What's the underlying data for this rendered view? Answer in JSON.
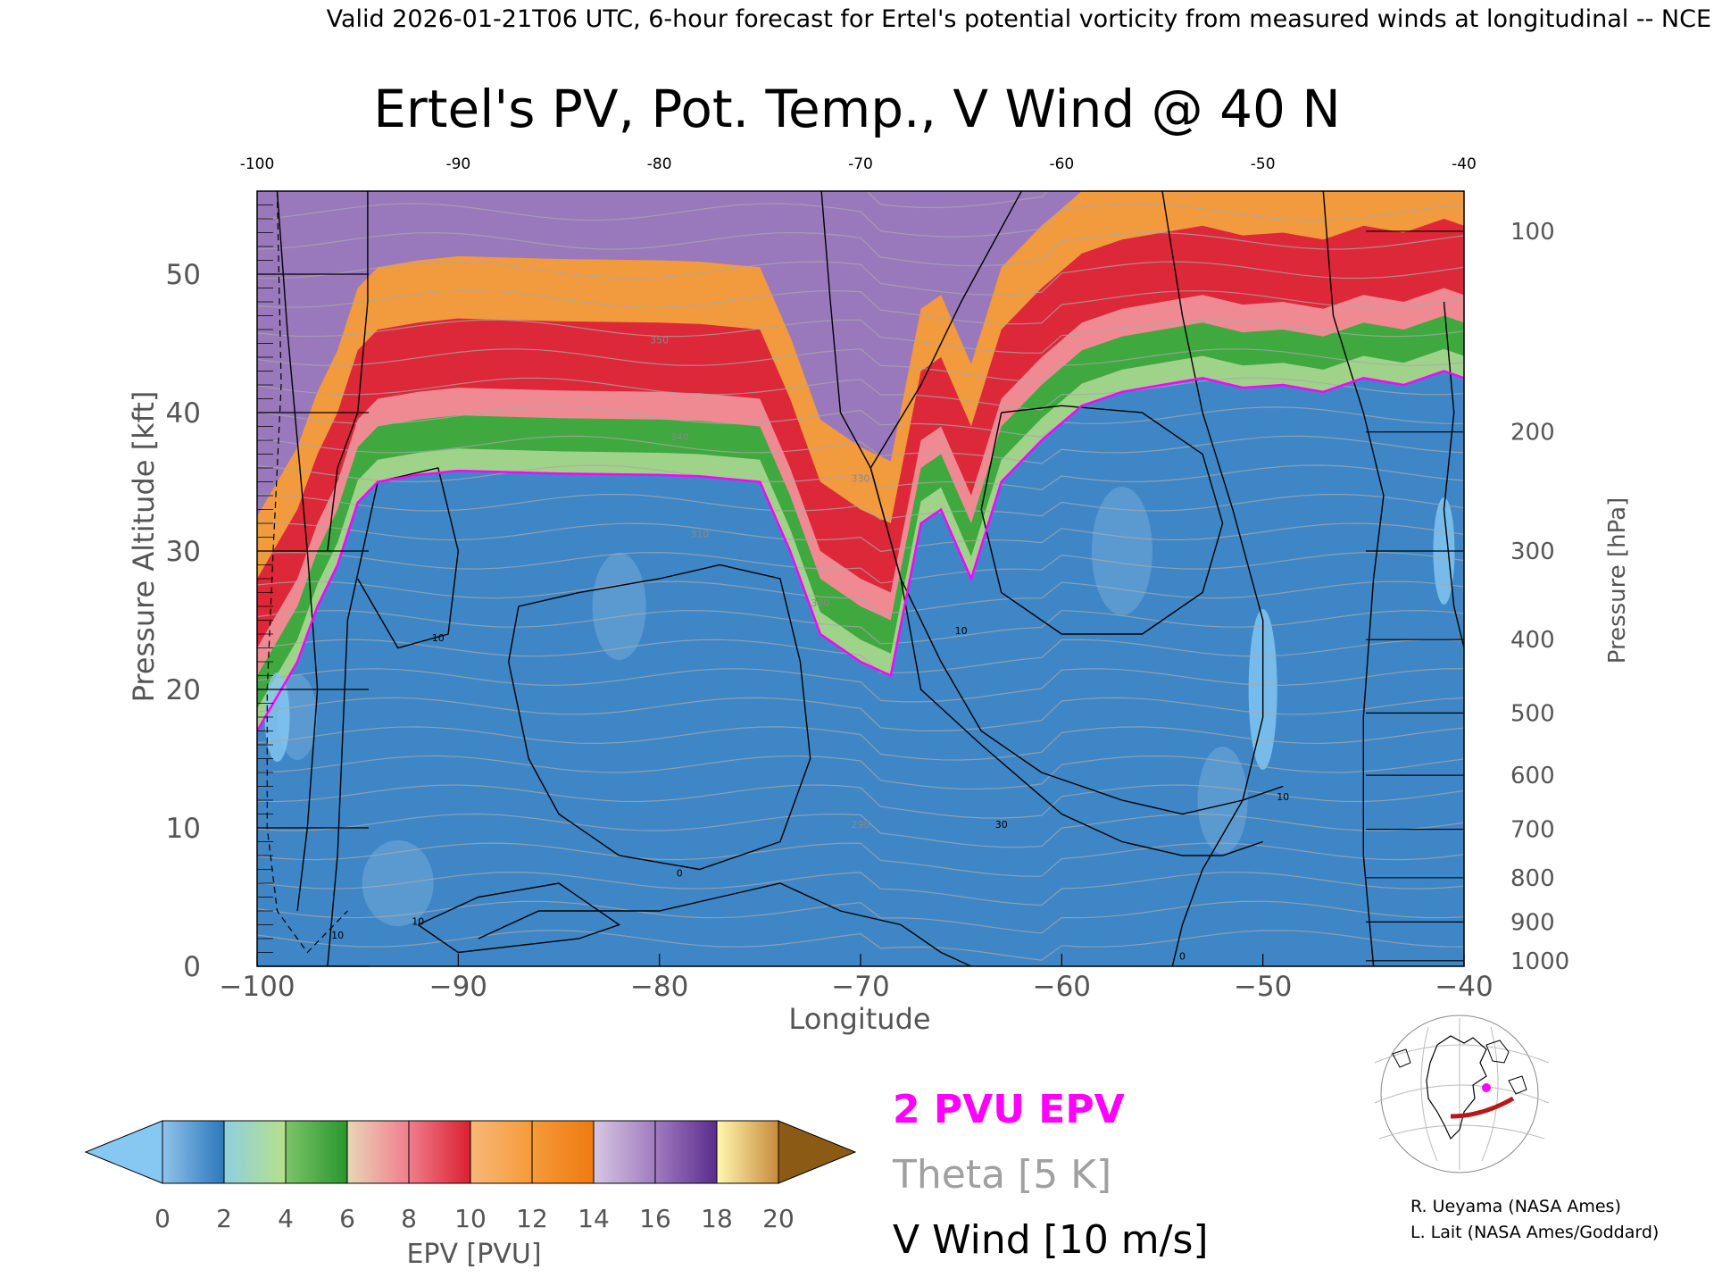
{
  "header": {
    "valid_line": "Valid 2026-01-21T06 UTC, 6-hour forecast for Ertel's potential vorticity from measured winds at longitudinal -- NCE"
  },
  "chart_data": {
    "type": "heatmap",
    "title": "Ertel's PV, Pot. Temp., V Wind @ 40 N",
    "xlabel": "Longitude",
    "ylabel": "Pressure Altitude [kft]",
    "y2label": "Pressure [hPa]",
    "xlim": [
      -100,
      -40
    ],
    "ylim": [
      0,
      56
    ],
    "x_ticks": [
      -100,
      -90,
      -80,
      -70,
      -60,
      -50,
      -40
    ],
    "x_tick_labels": [
      "−100",
      "−90",
      "−80",
      "−70",
      "−60",
      "−50",
      "−40"
    ],
    "x_top_tick_labels": [
      "-100",
      "-90",
      "-80",
      "-70",
      "-60",
      "-50",
      "-40"
    ],
    "y_ticks": [
      0,
      10,
      20,
      30,
      40,
      50
    ],
    "y_tick_labels": [
      "0",
      "10",
      "20",
      "30",
      "40",
      "50"
    ],
    "pressure_levels": [
      {
        "label": "100",
        "kft": 53.1
      },
      {
        "label": "200",
        "kft": 38.6
      },
      {
        "label": "300",
        "kft": 30.0
      },
      {
        "label": "400",
        "kft": 23.6
      },
      {
        "label": "500",
        "kft": 18.3
      },
      {
        "label": "600",
        "kft": 13.8
      },
      {
        "label": "700",
        "kft": 9.9
      },
      {
        "label": "800",
        "kft": 6.4
      },
      {
        "label": "900",
        "kft": 3.2
      },
      {
        "label": "1000",
        "kft": 0.4
      }
    ],
    "colorbar": {
      "label": "EPV [PVU]",
      "ticks": [
        "0",
        "2",
        "4",
        "6",
        "8",
        "10",
        "12",
        "14",
        "16",
        "18",
        "20"
      ],
      "under_color": "#86c8f2",
      "over_color": "#8b5a14",
      "segments": [
        {
          "from": 0,
          "to": 2,
          "colors": [
            "#8fc3ea",
            "#2c78bc"
          ]
        },
        {
          "from": 2,
          "to": 4,
          "colors": [
            "#8fcfe0",
            "#b6e08a"
          ]
        },
        {
          "from": 4,
          "to": 6,
          "colors": [
            "#7cc567",
            "#28962e"
          ]
        },
        {
          "from": 6,
          "to": 8,
          "colors": [
            "#e8d6b6",
            "#f07e8c"
          ]
        },
        {
          "from": 8,
          "to": 10,
          "colors": [
            "#f07e8c",
            "#d92030"
          ]
        },
        {
          "from": 10,
          "to": 12,
          "colors": [
            "#f8b878",
            "#f59a3a"
          ]
        },
        {
          "from": 12,
          "to": 14,
          "colors": [
            "#f59a3a",
            "#ef7a10"
          ]
        },
        {
          "from": 14,
          "to": 16,
          "colors": [
            "#d8c6e2",
            "#a07cc0"
          ]
        },
        {
          "from": 16,
          "to": 18,
          "colors": [
            "#a07cc0",
            "#5a2c8c"
          ]
        },
        {
          "from": 18,
          "to": 20,
          "colors": [
            "#fff8b0",
            "#c88a3c"
          ]
        }
      ]
    },
    "pv_2pvu_boundary": {
      "lon": [
        -100,
        -98,
        -97,
        -96,
        -95,
        -94,
        -92,
        -90,
        -85,
        -80,
        -78,
        -75,
        -73.5,
        -72,
        -70,
        -68.5,
        -67,
        -66,
        -64.5,
        -63,
        -61,
        -59,
        -57,
        -55,
        -53,
        -51,
        -49,
        -47,
        -45,
        -43,
        -41,
        -40
      ],
      "kft": [
        17,
        22,
        26,
        29,
        33.5,
        35,
        35.5,
        35.8,
        35.6,
        35.5,
        35.4,
        35,
        30,
        24,
        22,
        21,
        32,
        33,
        28,
        35,
        38,
        40.5,
        41.5,
        42,
        42.5,
        41.8,
        42,
        41.5,
        42.5,
        42,
        43,
        42.5
      ]
    },
    "legend": [
      {
        "label": "2 PVU EPV",
        "color": "#ff00ff"
      },
      {
        "label": "Theta [5 K]",
        "color": "#a0a0a0"
      },
      {
        "label": "V Wind [10 m/s]",
        "color": "#000000"
      }
    ],
    "contour_labels_wind": [
      "10",
      "0",
      "10",
      "30",
      "10",
      "0",
      "10",
      "10"
    ],
    "contour_labels_theta": [
      "350",
      "340",
      "330",
      "310",
      "300",
      "290"
    ]
  },
  "credits": {
    "line1": "R. Ueyama (NASA Ames)",
    "line2": "L. Lait (NASA Ames/Goddard)"
  },
  "map_inset": {
    "track_color": "#b81818",
    "marker_color": "#ff00ff"
  }
}
